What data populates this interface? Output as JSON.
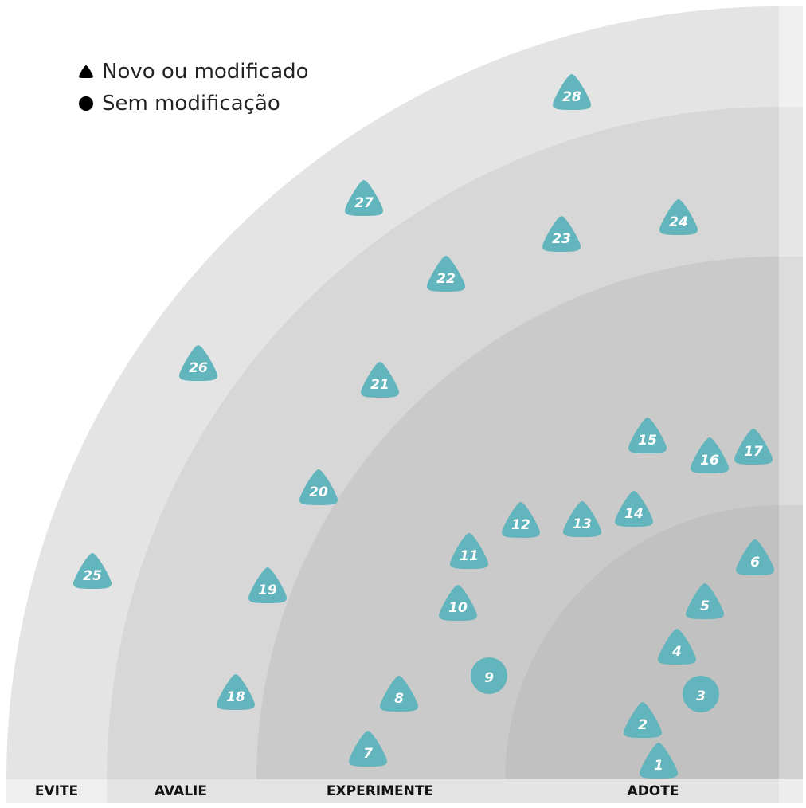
{
  "legend": {
    "new_label": "Novo ou modificado",
    "unchanged_label": "Sem modificação"
  },
  "rings": [
    {
      "id": "adote",
      "label": "ADOTE"
    },
    {
      "id": "experimente",
      "label": "EXPERIMENTE"
    },
    {
      "id": "avalie",
      "label": "AVALIE"
    },
    {
      "id": "evite",
      "label": "EVITE"
    }
  ],
  "colors": {
    "blip": "#63b5bd",
    "ring_adote": "#c1c1c1",
    "ring_experimente": "#cacaca",
    "ring_avalie": "#d7d7d7",
    "ring_evite": "#e4e4e4",
    "label_evite": "#efefef",
    "label_bar": "#e3e3e3"
  },
  "blips": [
    {
      "n": "1",
      "shape": "triangle"
    },
    {
      "n": "2",
      "shape": "triangle"
    },
    {
      "n": "3",
      "shape": "circle"
    },
    {
      "n": "4",
      "shape": "triangle"
    },
    {
      "n": "5",
      "shape": "triangle"
    },
    {
      "n": "6",
      "shape": "triangle"
    },
    {
      "n": "7",
      "shape": "triangle"
    },
    {
      "n": "8",
      "shape": "triangle"
    },
    {
      "n": "9",
      "shape": "circle"
    },
    {
      "n": "10",
      "shape": "triangle"
    },
    {
      "n": "11",
      "shape": "triangle"
    },
    {
      "n": "12",
      "shape": "triangle"
    },
    {
      "n": "13",
      "shape": "triangle"
    },
    {
      "n": "14",
      "shape": "triangle"
    },
    {
      "n": "15",
      "shape": "triangle"
    },
    {
      "n": "16",
      "shape": "triangle"
    },
    {
      "n": "17",
      "shape": "triangle"
    },
    {
      "n": "18",
      "shape": "triangle"
    },
    {
      "n": "19",
      "shape": "triangle"
    },
    {
      "n": "20",
      "shape": "triangle"
    },
    {
      "n": "21",
      "shape": "triangle"
    },
    {
      "n": "22",
      "shape": "triangle"
    },
    {
      "n": "23",
      "shape": "triangle"
    },
    {
      "n": "24",
      "shape": "triangle"
    },
    {
      "n": "25",
      "shape": "triangle"
    },
    {
      "n": "26",
      "shape": "triangle"
    },
    {
      "n": "27",
      "shape": "triangle"
    },
    {
      "n": "28",
      "shape": "triangle"
    }
  ]
}
